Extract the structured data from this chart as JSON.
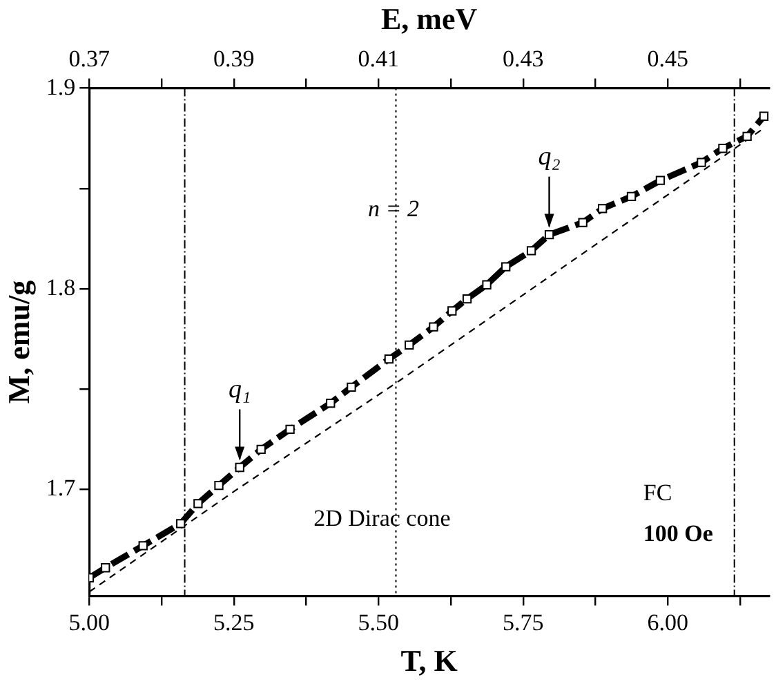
{
  "chart_data": {
    "type": "line",
    "xlabel": "T, K",
    "ylabel": "M, emu/g",
    "x2label": "E, meV",
    "xlim": [
      5.0,
      6.175
    ],
    "xticks": [
      {
        "value": 5.0,
        "label": "5.00"
      },
      {
        "value": 5.125,
        "label": null
      },
      {
        "value": 5.25,
        "label": "5.25"
      },
      {
        "value": 5.375,
        "label": null
      },
      {
        "value": 5.5,
        "label": "5.50"
      },
      {
        "value": 5.625,
        "label": null
      },
      {
        "value": 5.75,
        "label": "5.75"
      },
      {
        "value": 5.875,
        "label": null
      },
      {
        "value": 6.0,
        "label": "6.00"
      },
      {
        "value": 6.125,
        "label": null
      }
    ],
    "x2lim": [
      0.37,
      0.464
    ],
    "x2ticks": [
      0.37,
      {
        "value": 0.38,
        "label": null
      },
      0.39,
      {
        "value": 0.4,
        "label": null
      },
      0.41,
      {
        "value": 0.42,
        "label": null
      },
      0.43,
      {
        "value": 0.44,
        "label": null
      },
      0.45,
      {
        "value": 0.46,
        "label": null
      }
    ],
    "ylim": [
      1.647,
      1.9
    ],
    "yticks": [
      1.7,
      {
        "value": 1.75,
        "label": null
      },
      1.8,
      {
        "value": 1.85,
        "label": null
      },
      1.9
    ],
    "grid": false,
    "legend": false,
    "series": [
      {
        "color": "#000000",
        "marker": "square",
        "line_style": "dashed",
        "x": [
          5.0,
          5.028,
          5.093,
          5.158,
          5.188,
          5.224,
          5.26,
          5.297,
          5.347,
          5.417,
          5.453,
          5.518,
          5.553,
          5.595,
          5.627,
          5.653,
          5.687,
          5.72,
          5.764,
          5.795,
          5.853,
          5.887,
          5.937,
          5.987,
          6.058,
          6.095,
          6.137,
          6.166
        ],
        "values": [
          1.656,
          1.661,
          1.672,
          1.683,
          1.693,
          1.702,
          1.711,
          1.72,
          1.73,
          1.743,
          1.751,
          1.765,
          1.772,
          1.781,
          1.789,
          1.795,
          1.802,
          1.811,
          1.819,
          1.827,
          1.833,
          1.84,
          1.846,
          1.854,
          1.863,
          1.87,
          1.876,
          1.886
        ]
      },
      {
        "color": "#000000",
        "marker": "none",
        "line_style": "dashed",
        "x": [
          5.0,
          5.25,
          5.53,
          5.85,
          6.166
        ],
        "values": [
          1.649,
          1.699,
          1.753,
          1.817,
          1.88
        ]
      }
    ],
    "ref_lines": [
      {
        "axis": "x",
        "value": 5.165,
        "line_style": "dashed"
      },
      {
        "axis": "x",
        "value": 5.53,
        "line_style": "dotted"
      },
      {
        "axis": "x",
        "value": 6.115,
        "line_style": "dashed"
      }
    ],
    "annotations": [
      {
        "text": "q₁",
        "x": 5.26,
        "y": 1.711
      },
      {
        "text": "q₂",
        "x": 5.795,
        "y": 1.827
      },
      "n = 2",
      "2D Dirac cone",
      "FC",
      "100 Oe"
    ]
  }
}
